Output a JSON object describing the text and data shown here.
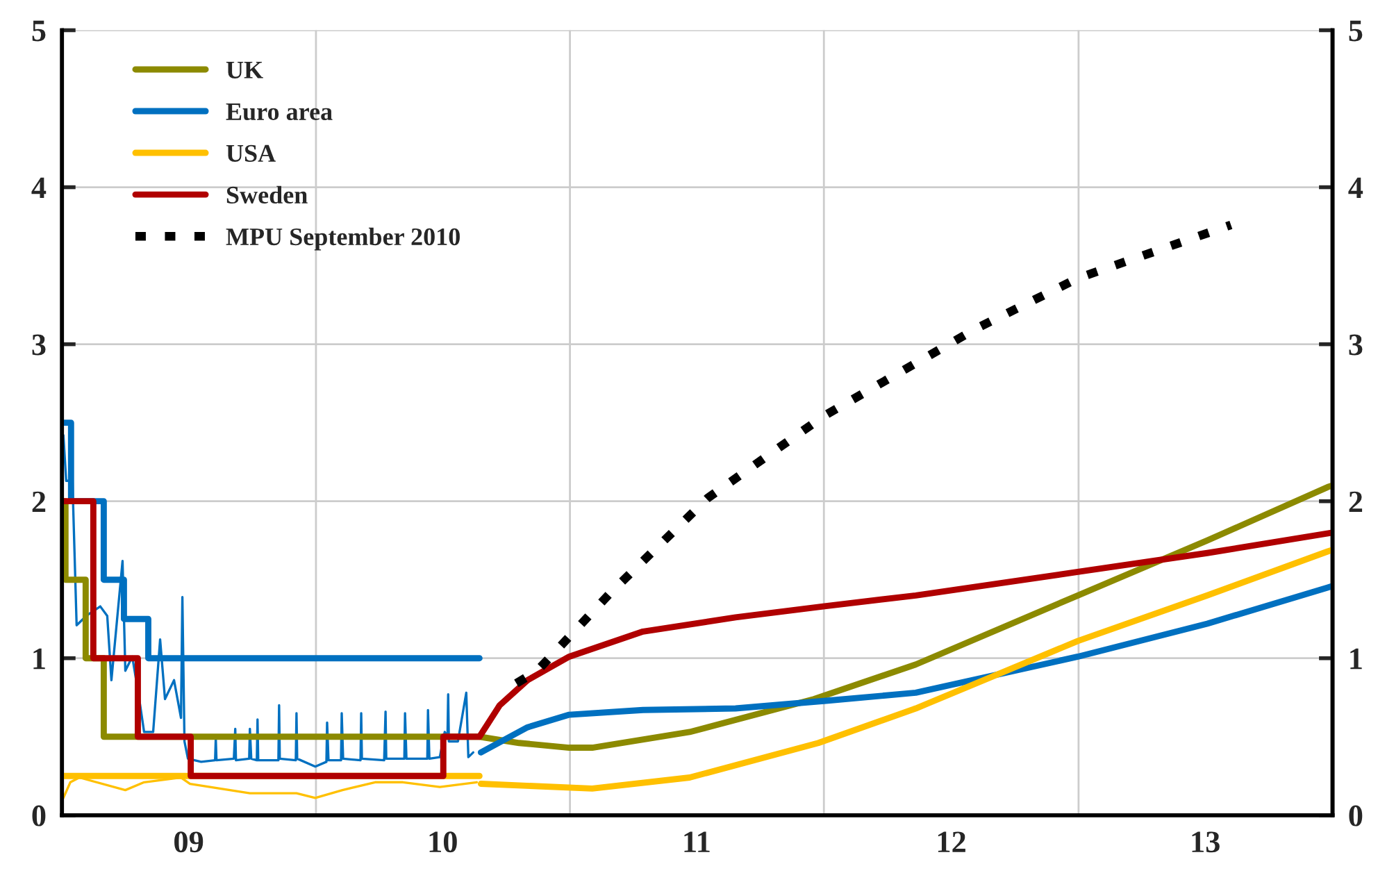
{
  "chart_data": {
    "type": "line",
    "xlim": [
      "2009-01-01",
      "2014-01-01"
    ],
    "xticks": [
      {
        "value": "2010-01-01",
        "label": null
      },
      {
        "value": "2011-01-01",
        "label": null
      },
      {
        "value": "2012-01-01",
        "label": null
      },
      {
        "value": "2013-01-01",
        "label": null
      },
      {
        "value": "2009-07-02",
        "label": "09"
      },
      {
        "value": "2010-07-02",
        "label": "10"
      },
      {
        "value": "2011-07-02",
        "label": "11"
      },
      {
        "value": "2012-07-02",
        "label": "12"
      },
      {
        "value": "2013-07-02",
        "label": "13"
      }
    ],
    "ylim": [
      0,
      5
    ],
    "yticks": [
      0,
      1,
      2,
      3,
      4,
      5
    ],
    "y2lim": [
      0,
      5
    ],
    "y2ticks": [
      0,
      1,
      2,
      3,
      4,
      5
    ],
    "grid": true,
    "legend": "top left",
    "series": [
      {
        "color": "#0070c0",
        "x": [
          "2009-01-03",
          "2009-01-07",
          "2009-01-16",
          "2009-01-22",
          "2009-02-05",
          "2009-02-15",
          "2009-02-25",
          "2009-03-07",
          "2009-03-13",
          "2009-03-29",
          "2009-04-02",
          "2009-04-12",
          "2009-04-22",
          "2009-04-29",
          "2009-05-12",
          "2009-05-22",
          "2009-05-29",
          "2009-06-11",
          "2009-06-21",
          "2009-06-23",
          "2009-06-26",
          "2009-07-01",
          "2009-07-20",
          "2009-08-09",
          "2009-08-10",
          "2009-08-11",
          "2009-09-05",
          "2009-09-07",
          "2009-09-08",
          "2009-09-27",
          "2009-09-28",
          "2009-09-30",
          "2009-10-08",
          "2009-10-09",
          "2009-10-10",
          "2009-11-08",
          "2009-11-09",
          "2009-11-10",
          "2009-12-03",
          "2009-12-04",
          "2009-12-05",
          "2009-12-31",
          "2010-01-16",
          "2010-01-17",
          "2010-01-19",
          "2010-02-06",
          "2010-02-07",
          "2010-02-09",
          "2010-03-06",
          "2010-03-07",
          "2010-03-08",
          "2010-04-09",
          "2010-04-11",
          "2010-04-12",
          "2010-05-08",
          "2010-05-09",
          "2010-05-11",
          "2010-06-10",
          "2010-06-11",
          "2010-06-13",
          "2010-06-28",
          "2010-07-05",
          "2010-07-09",
          "2010-07-10",
          "2010-07-11",
          "2010-07-24",
          "2010-08-05",
          "2010-08-08",
          "2010-08-15"
        ],
        "values": [
          2.42,
          2.13,
          2.13,
          1.21,
          1.27,
          1.3,
          1.33,
          1.27,
          0.86,
          1.62,
          0.92,
          1.01,
          0.74,
          0.53,
          0.53,
          1.12,
          0.74,
          0.86,
          0.62,
          1.39,
          0.47,
          0.36,
          0.34,
          0.35,
          0.49,
          0.35,
          0.36,
          0.55,
          0.35,
          0.36,
          0.55,
          0.36,
          0.35,
          0.61,
          0.35,
          0.35,
          0.7,
          0.36,
          0.35,
          0.65,
          0.36,
          0.31,
          0.34,
          0.59,
          0.35,
          0.35,
          0.65,
          0.36,
          0.35,
          0.65,
          0.36,
          0.35,
          0.66,
          0.36,
          0.36,
          0.65,
          0.36,
          0.36,
          0.67,
          0.36,
          0.37,
          0.53,
          0.5,
          0.77,
          0.47,
          0.47,
          0.78,
          0.37,
          0.4
        ]
      },
      {
        "color": "#ffc000",
        "x": [
          "2009-01-03",
          "2009-01-13",
          "2009-01-26",
          "2009-04-02",
          "2009-04-29",
          "2009-06-21",
          "2009-07-04",
          "2009-09-28",
          "2009-12-04",
          "2009-12-31",
          "2010-02-08",
          "2010-03-27",
          "2010-05-06",
          "2010-06-28",
          "2010-08-20"
        ],
        "values": [
          0.11,
          0.21,
          0.24,
          0.16,
          0.21,
          0.24,
          0.2,
          0.14,
          0.14,
          0.11,
          0.16,
          0.21,
          0.21,
          0.18,
          0.21
        ]
      },
      {
        "name": "UK",
        "color": "#8c8a00",
        "x": [
          "2009-01-01",
          "2009-01-06",
          "2009-01-06",
          "2009-02-04",
          "2009-02-04",
          "2009-03-02",
          "2009-03-02",
          "2010-08-24",
          "2010-10-20",
          "2010-12-31",
          "2011-02-02",
          "2011-06-22",
          "2011-12-18",
          "2012-05-12",
          "2012-12-31",
          "2013-07-05",
          "2013-12-25",
          "2014-01-01"
        ],
        "values": [
          2.0,
          2.0,
          1.5,
          1.5,
          1.0,
          1.0,
          0.5,
          0.5,
          0.46,
          0.43,
          0.43,
          0.53,
          0.74,
          0.96,
          1.4,
          1.75,
          2.09,
          2.1
        ]
      },
      {
        "name": "Euro area",
        "color": "#0070c0",
        "x": [
          "2009-01-01",
          "2009-01-14",
          "2009-01-14",
          "2009-03-02",
          "2009-03-02",
          "2009-03-31",
          "2009-03-31",
          "2009-05-05",
          "2009-05-05",
          "2010-08-24",
          "2010-08-25",
          "2010-08-26",
          "2010-11-01",
          "2010-12-31",
          "2011-04-16",
          "2011-08-27",
          "2012-01-07",
          "2012-05-12",
          "2012-12-31",
          "2013-07-05",
          "2013-12-25",
          "2014-01-01"
        ],
        "values": [
          2.5,
          2.5,
          2.0,
          2.0,
          1.5,
          1.5,
          1.25,
          1.25,
          1.0,
          1.0,
          null,
          0.4,
          0.56,
          0.64,
          0.67,
          0.68,
          0.73,
          0.78,
          1.01,
          1.22,
          1.45,
          1.46
        ]
      },
      {
        "name": "USA",
        "color": "#ffc000",
        "x": [
          "2009-01-01",
          "2010-08-24",
          "2010-08-25",
          "2010-08-26",
          "2011-02-02",
          "2011-06-22",
          "2011-12-24",
          "2012-05-12",
          "2012-12-31",
          "2013-07-05",
          "2013-12-25",
          "2014-01-01"
        ],
        "values": [
          0.25,
          0.25,
          null,
          0.2,
          0.17,
          0.24,
          0.46,
          0.68,
          1.11,
          1.4,
          1.68,
          1.69
        ]
      },
      {
        "name": "Sweden",
        "color": "#b00000",
        "x": [
          "2009-01-01",
          "2009-02-15",
          "2009-02-15",
          "2009-04-20",
          "2009-04-20",
          "2009-07-05",
          "2009-07-05",
          "2010-07-03",
          "2010-07-03",
          "2010-08-24",
          "2010-09-22",
          "2010-11-01",
          "2010-12-31",
          "2011-04-16",
          "2011-08-27",
          "2011-12-31",
          "2012-05-12",
          "2012-12-31",
          "2013-07-05",
          "2014-01-01"
        ],
        "values": [
          2.0,
          2.0,
          1.0,
          1.0,
          0.5,
          0.5,
          0.25,
          0.25,
          0.5,
          0.5,
          0.7,
          0.86,
          1.01,
          1.17,
          1.26,
          1.33,
          1.4,
          1.55,
          1.67,
          1.8
        ]
      },
      {
        "name": "MPU September 2010",
        "color": "#000000",
        "line_style": "dashed",
        "x": [
          "2010-10-16",
          "2010-11-15",
          "2011-03-01",
          "2011-07-18",
          "2011-12-31",
          "2012-04-03",
          "2012-08-07",
          "2012-12-31",
          "2013-08-08"
        ],
        "values": [
          0.84,
          0.92,
          1.42,
          2.02,
          2.54,
          2.78,
          3.1,
          3.42,
          3.76
        ]
      }
    ]
  }
}
